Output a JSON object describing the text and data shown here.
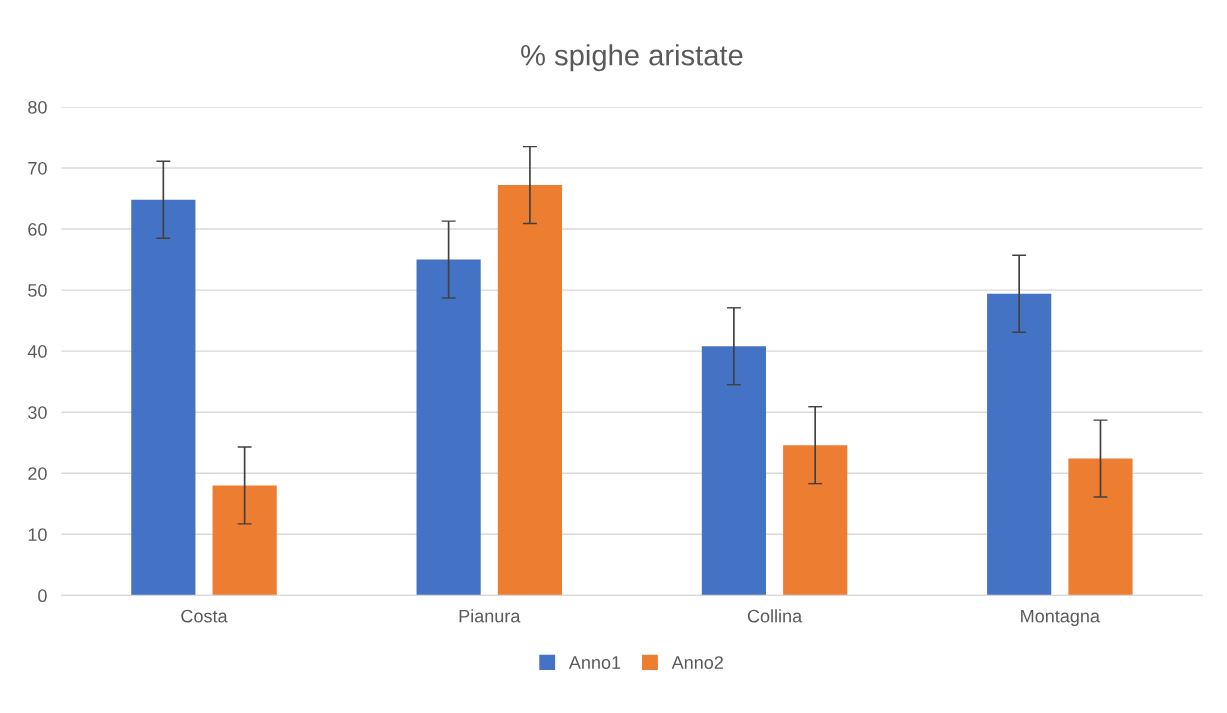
{
  "chart_data": {
    "type": "bar",
    "title": "% spighe aristate",
    "categories": [
      "Costa",
      "Pianura",
      "Collina",
      "Montagna"
    ],
    "series": [
      {
        "name": "Anno1",
        "color": "#4472c4",
        "values": [
          64.8,
          55.0,
          40.8,
          49.4
        ],
        "errors": [
          6.3,
          6.3,
          6.3,
          6.3
        ]
      },
      {
        "name": "Anno2",
        "color": "#ed7d31",
        "values": [
          18.0,
          67.2,
          24.6,
          22.4
        ],
        "errors": [
          6.3,
          6.3,
          6.3,
          6.3
        ]
      }
    ],
    "ylim": [
      0,
      80
    ],
    "yticks": [
      0,
      10,
      20,
      30,
      40,
      50,
      60,
      70,
      80
    ],
    "grid": "y",
    "legend": "bottom"
  }
}
